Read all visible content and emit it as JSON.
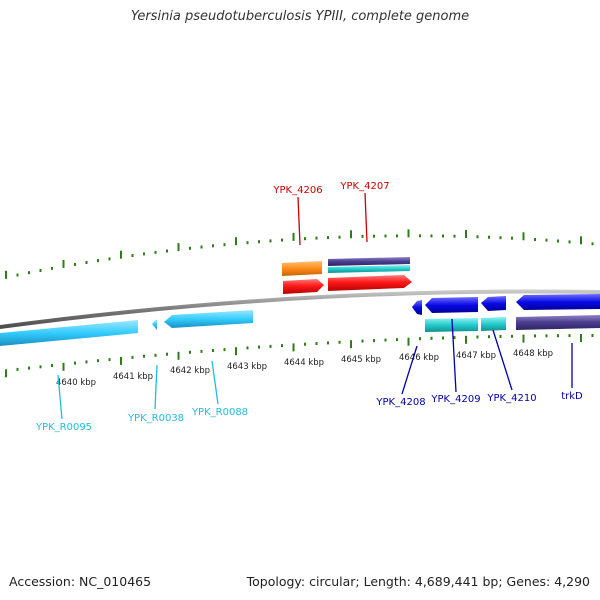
{
  "title": "Yersinia pseudotuberculosis YPIII, complete genome",
  "footer": {
    "accession": "Accession: NC_010465",
    "summary": "Topology: circular; Length: 4,689,441 bp; Genes: 4,290"
  },
  "scale_labels": [
    "4640 kbp",
    "4641 kbp",
    "4642 kbp",
    "4643 kbp",
    "4644 kbp",
    "4645 kbp",
    "4646 kbp",
    "4647 kbp",
    "4648 kbp"
  ],
  "gene_labels": {
    "ypk_4206": "YPK_4206",
    "ypk_4207": "YPK_4207",
    "ypk_r0095": "YPK_R0095",
    "ypk_r0038": "YPK_R0038",
    "ypk_r0088": "YPK_R0088",
    "ypk_4208": "YPK_4208",
    "ypk_4209": "YPK_4209",
    "ypk_4210": "YPK_4210",
    "trkd": "trkD"
  },
  "colors": {
    "backbone": "#8a8a8a",
    "tick": "#2e7d1a",
    "red_gene": "#ff1a1a",
    "orange_gene": "#ff8c1a",
    "rna_gene": "#33ccff",
    "blue_gene": "#0a0ae6",
    "cyan_gene": "#22cccc",
    "purple_gene": "#4b3d8f",
    "red_label": "#cc0000",
    "cyan_label": "#22bbdd",
    "blue_label": "#0000aa"
  }
}
